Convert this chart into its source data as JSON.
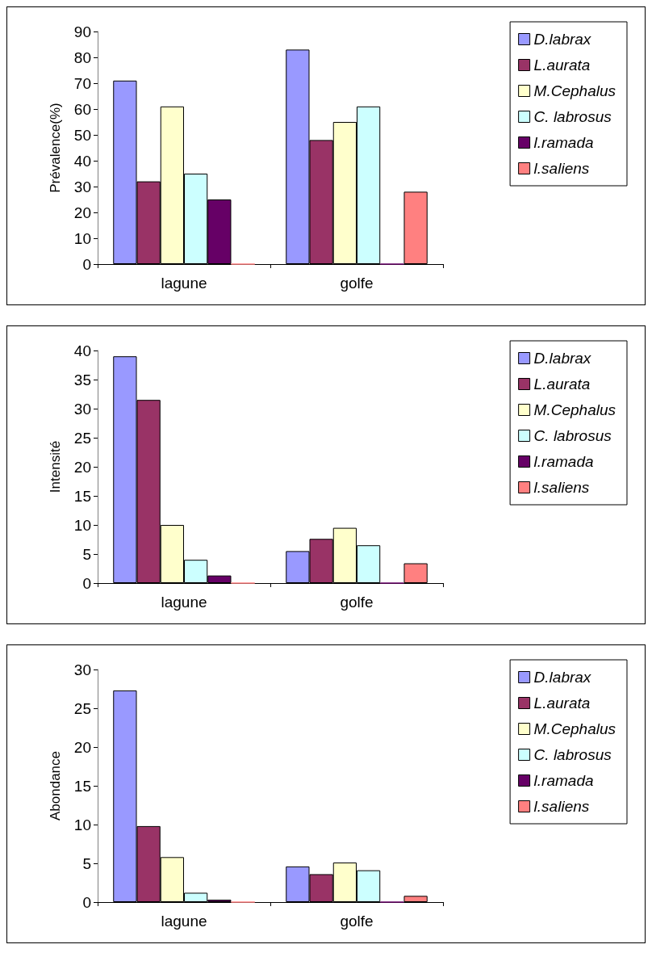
{
  "chart_data": [
    {
      "type": "bar",
      "ylabel": "Prévalence(%)",
      "categories": [
        "lagune",
        "golfe"
      ],
      "ylim": [
        0,
        90
      ],
      "yticks": [
        0,
        10,
        20,
        30,
        40,
        50,
        60,
        70,
        80,
        90
      ],
      "grid": false,
      "legend": "right",
      "series": [
        {
          "name": "D.labrax",
          "color": "#9999ff",
          "values": [
            71,
            83
          ]
        },
        {
          "name": "L.aurata",
          "color": "#993366",
          "values": [
            32,
            48
          ]
        },
        {
          "name": "M.Cephalus",
          "color": "#ffffcc",
          "values": [
            61,
            55
          ]
        },
        {
          "name": "C. labrosus",
          "color": "#ccffff",
          "values": [
            35,
            61
          ]
        },
        {
          "name": "l.ramada",
          "color": "#660066",
          "values": [
            25,
            0
          ]
        },
        {
          "name": "l.saliens",
          "color": "#ff8080",
          "values": [
            0,
            28
          ]
        }
      ]
    },
    {
      "type": "bar",
      "ylabel": "Intensité",
      "categories": [
        "lagune",
        "golfe"
      ],
      "ylim": [
        0,
        40
      ],
      "yticks": [
        0,
        5,
        10,
        15,
        20,
        25,
        30,
        35,
        40
      ],
      "grid": false,
      "legend": "right",
      "series": [
        {
          "name": "D.labrax",
          "color": "#9999ff",
          "values": [
            39,
            5.5
          ]
        },
        {
          "name": "L.aurata",
          "color": "#993366",
          "values": [
            31.5,
            7.6
          ]
        },
        {
          "name": "M.Cephalus",
          "color": "#ffffcc",
          "values": [
            10,
            9.5
          ]
        },
        {
          "name": "C. labrosus",
          "color": "#ccffff",
          "values": [
            4,
            6.5
          ]
        },
        {
          "name": "l.ramada",
          "color": "#660066",
          "values": [
            1.3,
            0
          ]
        },
        {
          "name": "l.saliens",
          "color": "#ff8080",
          "values": [
            0,
            3.4
          ]
        }
      ]
    },
    {
      "type": "bar",
      "ylabel": "Abondance",
      "categories": [
        "lagune",
        "golfe"
      ],
      "ylim": [
        0,
        30
      ],
      "yticks": [
        0,
        5,
        10,
        15,
        20,
        25,
        30
      ],
      "grid": false,
      "legend": "right",
      "series": [
        {
          "name": "D.labrax",
          "color": "#9999ff",
          "values": [
            27.3,
            4.6
          ]
        },
        {
          "name": "L.aurata",
          "color": "#993366",
          "values": [
            9.8,
            3.6
          ]
        },
        {
          "name": "M.Cephalus",
          "color": "#ffffcc",
          "values": [
            5.8,
            5.1
          ]
        },
        {
          "name": "C. labrosus",
          "color": "#ccffff",
          "values": [
            1.2,
            4.1
          ]
        },
        {
          "name": "l.ramada",
          "color": "#660066",
          "values": [
            0.3,
            0
          ]
        },
        {
          "name": "l.saliens",
          "color": "#ff8080",
          "values": [
            0,
            0.8
          ]
        }
      ]
    }
  ]
}
